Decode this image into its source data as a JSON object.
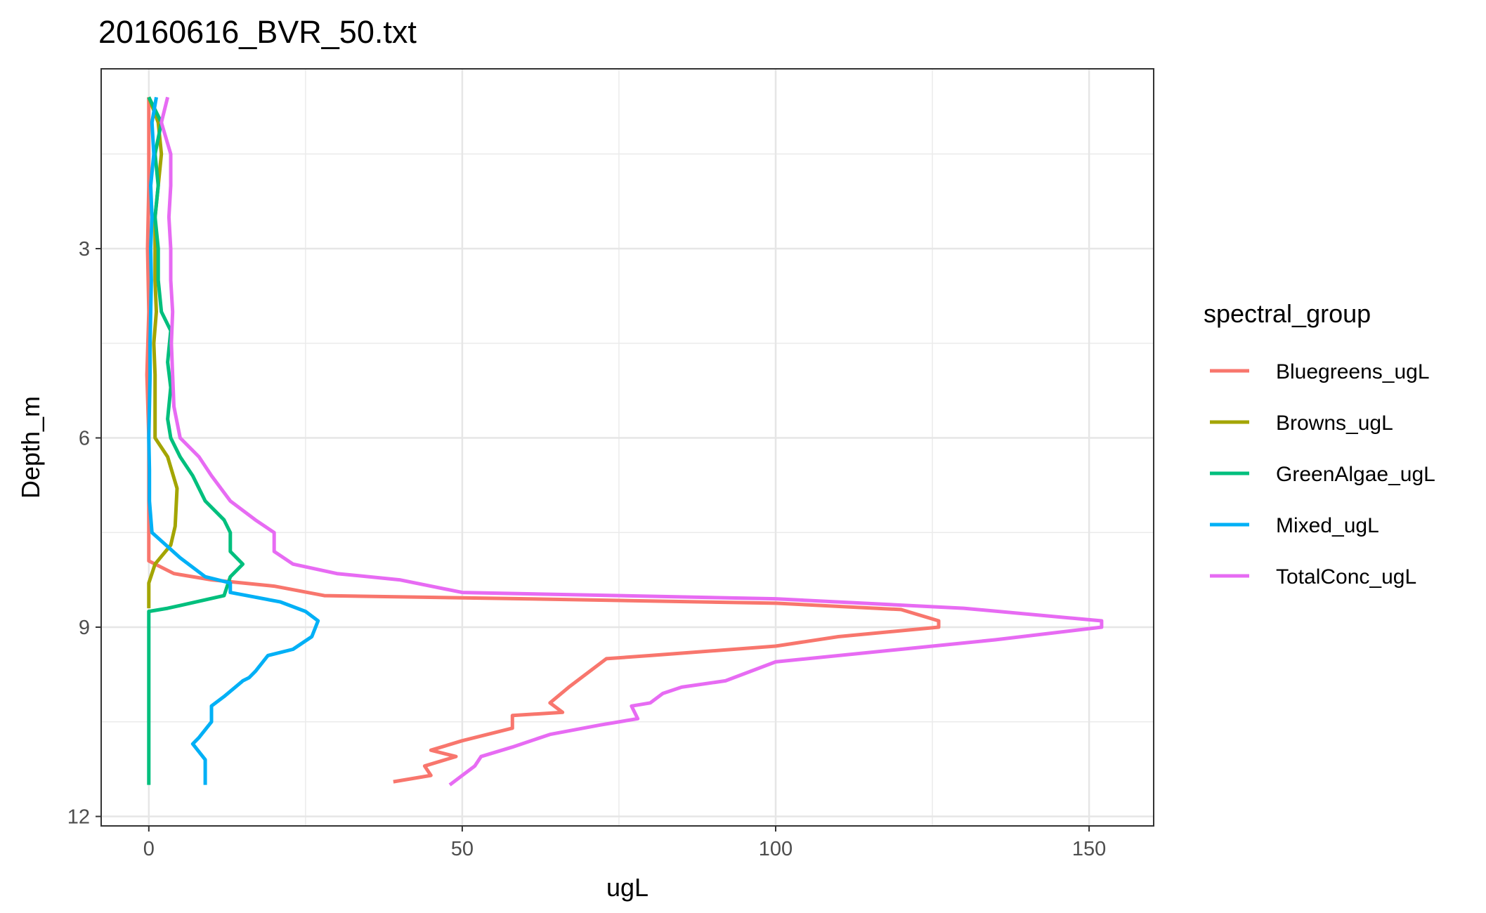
{
  "chart_data": {
    "type": "line",
    "title": "20160616_BVR_50.txt",
    "xlabel": "ugL",
    "ylabel": "Depth_m",
    "xlim": [
      -7.6,
      160.3
    ],
    "ylim": [
      12.15,
      0.15
    ],
    "y_reversed": true,
    "xticks": [
      0,
      50,
      100,
      150
    ],
    "yticks": [
      3,
      6,
      9,
      12
    ],
    "xtick_labels": [
      "0",
      "50",
      "100",
      "150"
    ],
    "ytick_labels": [
      "3",
      "6",
      "9",
      "12"
    ],
    "grid": true,
    "legend": {
      "title": "spectral_group",
      "position": "right"
    },
    "series": [
      {
        "name": "Bluegreens_ugL",
        "color": "#F8766D",
        "points": [
          [
            0,
            0.6
          ],
          [
            0,
            2.0
          ],
          [
            -0.2,
            3.0
          ],
          [
            0,
            4.0
          ],
          [
            -0.3,
            5.0
          ],
          [
            0,
            6.0
          ],
          [
            0,
            7.0
          ],
          [
            0,
            7.95
          ],
          [
            4,
            8.15
          ],
          [
            10,
            8.25
          ],
          [
            20,
            8.35
          ],
          [
            28,
            8.5
          ],
          [
            60,
            8.55
          ],
          [
            100,
            8.62
          ],
          [
            120,
            8.72
          ],
          [
            126,
            8.9
          ],
          [
            126,
            9.0
          ],
          [
            110,
            9.15
          ],
          [
            100,
            9.3
          ],
          [
            80,
            9.45
          ],
          [
            73,
            9.5
          ],
          [
            67,
            9.95
          ],
          [
            64,
            10.2
          ],
          [
            66,
            10.35
          ],
          [
            58,
            10.4
          ],
          [
            58,
            10.6
          ],
          [
            50,
            10.8
          ],
          [
            45,
            10.95
          ],
          [
            49,
            11.05
          ],
          [
            44,
            11.2
          ],
          [
            45,
            11.35
          ],
          [
            39,
            11.45
          ]
        ]
      },
      {
        "name": "Browns_ugL",
        "color": "#A3A500",
        "points": [
          [
            0,
            0.6
          ],
          [
            1.5,
            1.0
          ],
          [
            2,
            1.5
          ],
          [
            1.5,
            2.0
          ],
          [
            1,
            2.5
          ],
          [
            1,
            3.0
          ],
          [
            1,
            3.5
          ],
          [
            1.2,
            4.0
          ],
          [
            0.8,
            4.5
          ],
          [
            1,
            5.0
          ],
          [
            1,
            5.5
          ],
          [
            1,
            6.0
          ],
          [
            3,
            6.3
          ],
          [
            4.5,
            6.8
          ],
          [
            4.2,
            7.4
          ],
          [
            3.5,
            7.7
          ],
          [
            1,
            8.0
          ],
          [
            0,
            8.3
          ],
          [
            0,
            8.7
          ]
        ]
      },
      {
        "name": "GreenAlgae_ugL",
        "color": "#00BF7D",
        "points": [
          [
            0,
            0.6
          ],
          [
            2,
            1.0
          ],
          [
            1,
            1.5
          ],
          [
            1.5,
            2.0
          ],
          [
            1,
            2.5
          ],
          [
            1.5,
            3.0
          ],
          [
            1.5,
            3.5
          ],
          [
            2,
            4.0
          ],
          [
            3.5,
            4.3
          ],
          [
            3,
            4.8
          ],
          [
            3.5,
            5.2
          ],
          [
            3,
            5.7
          ],
          [
            3.5,
            6.0
          ],
          [
            5,
            6.3
          ],
          [
            7,
            6.6
          ],
          [
            9,
            7.0
          ],
          [
            12,
            7.3
          ],
          [
            13,
            7.5
          ],
          [
            13,
            7.8
          ],
          [
            15,
            8.0
          ],
          [
            13,
            8.2
          ],
          [
            12,
            8.5
          ],
          [
            3,
            8.7
          ],
          [
            0,
            8.75
          ],
          [
            0,
            11.5
          ]
        ]
      },
      {
        "name": "Mixed_ugL",
        "color": "#00B0F6",
        "points": [
          [
            1.2,
            0.6
          ],
          [
            0.5,
            1.0
          ],
          [
            0.8,
            1.5
          ],
          [
            0.3,
            2.0
          ],
          [
            0.5,
            2.5
          ],
          [
            0.3,
            3.0
          ],
          [
            0.4,
            3.5
          ],
          [
            0.3,
            4.0
          ],
          [
            0.2,
            4.5
          ],
          [
            0.2,
            5.0
          ],
          [
            0.1,
            5.5
          ],
          [
            0,
            6.0
          ],
          [
            0.1,
            6.5
          ],
          [
            0.1,
            7.0
          ],
          [
            0.5,
            7.5
          ],
          [
            5,
            7.9
          ],
          [
            9,
            8.2
          ],
          [
            13,
            8.3
          ],
          [
            13,
            8.45
          ],
          [
            21,
            8.6
          ],
          [
            25,
            8.75
          ],
          [
            27,
            8.9
          ],
          [
            26,
            9.15
          ],
          [
            23,
            9.35
          ],
          [
            19,
            9.45
          ],
          [
            17,
            9.7
          ],
          [
            16,
            9.8
          ],
          [
            15,
            9.85
          ],
          [
            12,
            10.1
          ],
          [
            10,
            10.25
          ],
          [
            10,
            10.5
          ],
          [
            8,
            10.75
          ],
          [
            7,
            10.85
          ],
          [
            9,
            11.1
          ],
          [
            9,
            11.25
          ],
          [
            9,
            11.5
          ]
        ]
      },
      {
        "name": "TotalConc_ugL",
        "color": "#E76BF3",
        "points": [
          [
            3,
            0.6
          ],
          [
            2,
            1.0
          ],
          [
            3.5,
            1.5
          ],
          [
            3.5,
            2.0
          ],
          [
            3.2,
            2.5
          ],
          [
            3.5,
            3.0
          ],
          [
            3.5,
            3.5
          ],
          [
            3.8,
            4.0
          ],
          [
            3.6,
            4.5
          ],
          [
            3.8,
            5.0
          ],
          [
            4,
            5.5
          ],
          [
            5,
            6.0
          ],
          [
            8,
            6.3
          ],
          [
            10,
            6.6
          ],
          [
            13,
            7.0
          ],
          [
            17,
            7.3
          ],
          [
            20,
            7.5
          ],
          [
            20,
            7.8
          ],
          [
            23,
            8.0
          ],
          [
            30,
            8.15
          ],
          [
            40,
            8.25
          ],
          [
            50,
            8.45
          ],
          [
            100,
            8.55
          ],
          [
            130,
            8.7
          ],
          [
            152,
            8.9
          ],
          [
            152,
            9.0
          ],
          [
            135,
            9.2
          ],
          [
            120,
            9.35
          ],
          [
            100,
            9.55
          ],
          [
            92,
            9.85
          ],
          [
            85,
            9.95
          ],
          [
            82,
            10.05
          ],
          [
            80,
            10.2
          ],
          [
            77,
            10.25
          ],
          [
            78,
            10.45
          ],
          [
            72,
            10.55
          ],
          [
            64,
            10.7
          ],
          [
            58,
            10.9
          ],
          [
            53,
            11.05
          ],
          [
            52,
            11.2
          ],
          [
            50,
            11.35
          ],
          [
            48,
            11.5
          ]
        ]
      }
    ]
  }
}
